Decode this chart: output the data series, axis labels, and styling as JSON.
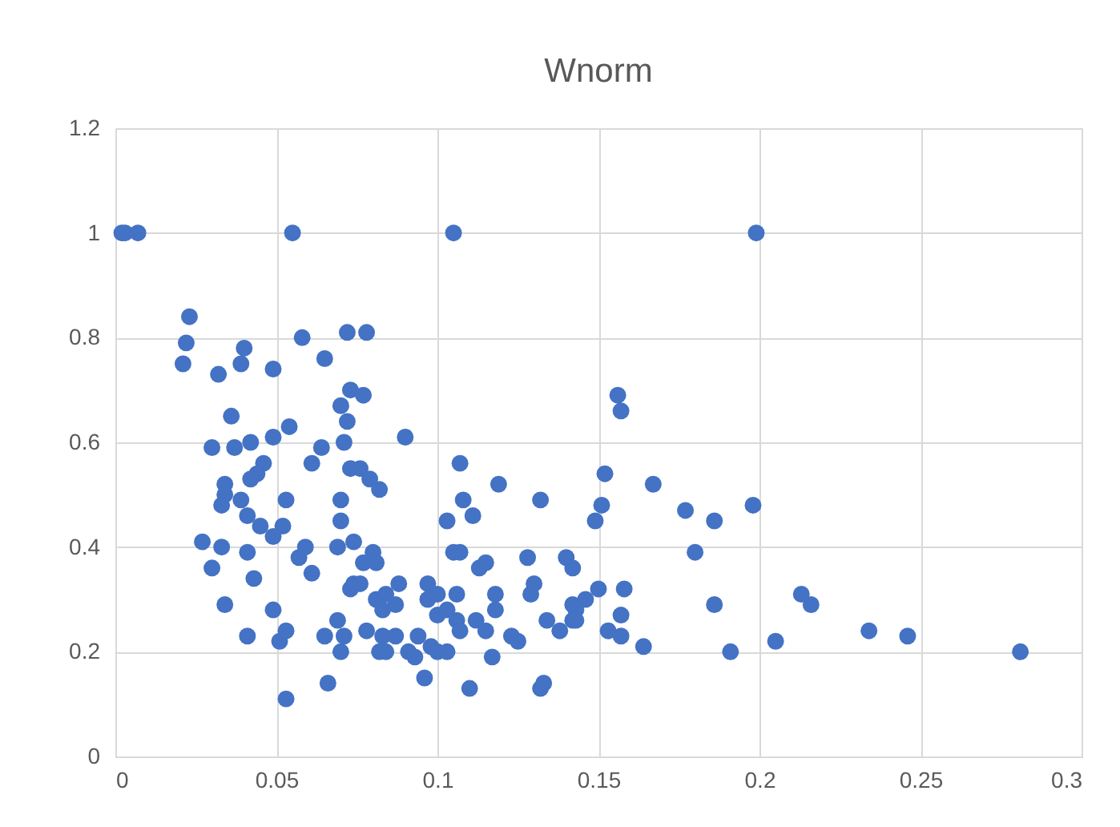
{
  "chart_data": {
    "type": "scatter",
    "title": "Wnorm",
    "x": [
      0.002,
      0.003,
      0.007,
      0.055,
      0.105,
      0.199,
      0.023,
      0.022,
      0.021,
      0.032,
      0.039,
      0.04,
      0.049,
      0.058,
      0.072,
      0.065,
      0.073,
      0.07,
      0.072,
      0.036,
      0.03,
      0.037,
      0.042,
      0.049,
      0.054,
      0.064,
      0.071,
      0.061,
      0.073,
      0.046,
      0.044,
      0.042,
      0.034,
      0.034,
      0.033,
      0.039,
      0.041,
      0.045,
      0.053,
      0.052,
      0.07,
      0.07,
      0.049,
      0.027,
      0.033,
      0.041,
      0.03,
      0.043,
      0.059,
      0.057,
      0.061,
      0.069,
      0.073,
      0.034,
      0.049,
      0.041,
      0.051,
      0.053,
      0.065,
      0.069,
      0.071,
      0.07,
      0.066,
      0.053,
      0.078,
      0.077,
      0.09,
      0.076,
      0.079,
      0.082,
      0.107,
      0.119,
      0.132,
      0.108,
      0.111,
      0.103,
      0.074,
      0.08,
      0.077,
      0.081,
      0.074,
      0.076,
      0.088,
      0.081,
      0.084,
      0.083,
      0.087,
      0.097,
      0.097,
      0.1,
      0.106,
      0.105,
      0.107,
      0.113,
      0.115,
      0.128,
      0.14,
      0.142,
      0.078,
      0.083,
      0.087,
      0.082,
      0.084,
      0.091,
      0.093,
      0.094,
      0.098,
      0.1,
      0.103,
      0.1,
      0.103,
      0.106,
      0.107,
      0.112,
      0.115,
      0.118,
      0.118,
      0.123,
      0.125,
      0.117,
      0.129,
      0.13,
      0.134,
      0.138,
      0.142,
      0.142,
      0.096,
      0.11,
      0.133,
      0.132,
      0.156,
      0.157,
      0.152,
      0.151,
      0.149,
      0.167,
      0.177,
      0.186,
      0.198,
      0.18,
      0.15,
      0.158,
      0.146,
      0.143,
      0.143,
      0.157,
      0.153,
      0.157,
      0.164,
      0.186,
      0.191,
      0.205,
      0.213,
      0.216,
      0.234,
      0.246,
      0.281
    ],
    "values": [
      1.0,
      1.0,
      1.0,
      1.0,
      1.0,
      1.0,
      0.84,
      0.79,
      0.75,
      0.73,
      0.75,
      0.78,
      0.74,
      0.8,
      0.81,
      0.76,
      0.7,
      0.67,
      0.64,
      0.65,
      0.59,
      0.59,
      0.6,
      0.61,
      0.63,
      0.59,
      0.6,
      0.56,
      0.55,
      0.56,
      0.54,
      0.53,
      0.52,
      0.5,
      0.48,
      0.49,
      0.46,
      0.44,
      0.49,
      0.44,
      0.49,
      0.45,
      0.42,
      0.41,
      0.4,
      0.39,
      0.36,
      0.34,
      0.4,
      0.38,
      0.35,
      0.4,
      0.32,
      0.29,
      0.28,
      0.23,
      0.22,
      0.24,
      0.23,
      0.26,
      0.23,
      0.2,
      0.14,
      0.11,
      0.81,
      0.69,
      0.61,
      0.55,
      0.53,
      0.51,
      0.56,
      0.52,
      0.49,
      0.49,
      0.46,
      0.45,
      0.41,
      0.39,
      0.37,
      0.37,
      0.33,
      0.33,
      0.33,
      0.3,
      0.31,
      0.28,
      0.29,
      0.33,
      0.3,
      0.31,
      0.31,
      0.39,
      0.39,
      0.36,
      0.37,
      0.38,
      0.38,
      0.36,
      0.24,
      0.23,
      0.23,
      0.2,
      0.2,
      0.2,
      0.19,
      0.23,
      0.21,
      0.2,
      0.2,
      0.27,
      0.28,
      0.26,
      0.24,
      0.26,
      0.24,
      0.31,
      0.28,
      0.23,
      0.22,
      0.19,
      0.31,
      0.33,
      0.26,
      0.24,
      0.29,
      0.26,
      0.15,
      0.13,
      0.14,
      0.13,
      0.69,
      0.66,
      0.54,
      0.48,
      0.45,
      0.52,
      0.47,
      0.45,
      0.48,
      0.39,
      0.32,
      0.32,
      0.3,
      0.28,
      0.26,
      0.27,
      0.24,
      0.23,
      0.21,
      0.29,
      0.2,
      0.22,
      0.31,
      0.29,
      0.24,
      0.23,
      0.2
    ],
    "color": "#4472c4",
    "marker": "circle",
    "xlim": [
      0,
      0.3
    ],
    "xticks": [
      0,
      0.05,
      0.1,
      0.15,
      0.2,
      0.25,
      0.3
    ],
    "ylim": [
      0,
      1.2
    ],
    "yticks": [
      0,
      0.2,
      0.4,
      0.6,
      0.8,
      1,
      1.2
    ],
    "grid": true
  }
}
